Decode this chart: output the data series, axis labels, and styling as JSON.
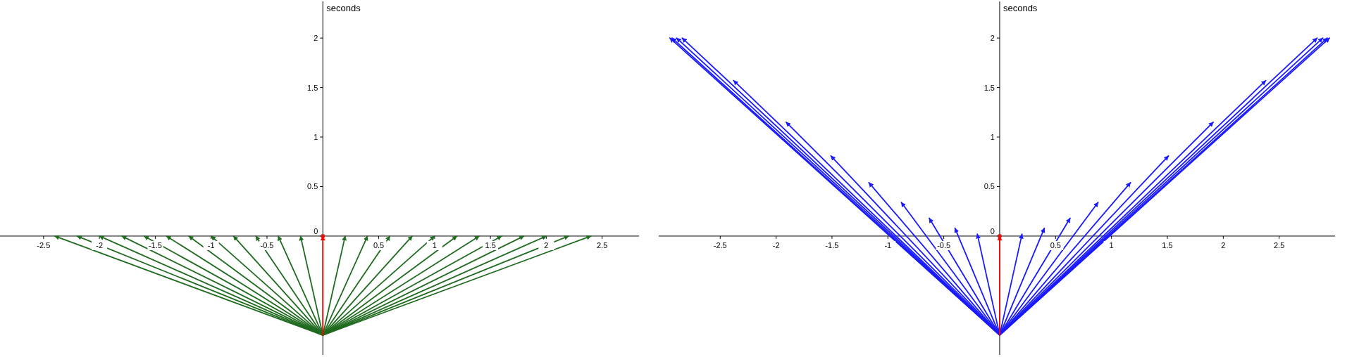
{
  "chart_data": [
    {
      "type": "line",
      "ylabel": "seconds",
      "xlim": [
        -2.89,
        2.83
      ],
      "ylim": [
        -1.2,
        2.37
      ],
      "xticks": [
        -2.5,
        -2,
        -1.5,
        -1,
        -0.5,
        0.5,
        1,
        1.5,
        2,
        2.5
      ],
      "yticks": [
        0,
        0.5,
        1,
        1.5,
        2
      ],
      "series": [
        {
          "color": "#1f6b1f",
          "x": [
            0,
            -2.4
          ],
          "values": [
            -1,
            0
          ]
        },
        {
          "color": "#1f6b1f",
          "x": [
            0,
            -2.2
          ],
          "values": [
            -1,
            0
          ]
        },
        {
          "color": "#1f6b1f",
          "x": [
            0,
            -2.0
          ],
          "values": [
            -1,
            0
          ]
        },
        {
          "color": "#1f6b1f",
          "x": [
            0,
            -1.8
          ],
          "values": [
            -1,
            0
          ]
        },
        {
          "color": "#1f6b1f",
          "x": [
            0,
            -1.6
          ],
          "values": [
            -1,
            0
          ]
        },
        {
          "color": "#1f6b1f",
          "x": [
            0,
            -1.4
          ],
          "values": [
            -1,
            0
          ]
        },
        {
          "color": "#1f6b1f",
          "x": [
            0,
            -1.2
          ],
          "values": [
            -1,
            0
          ]
        },
        {
          "color": "#1f6b1f",
          "x": [
            0,
            -1.0
          ],
          "values": [
            -1,
            0
          ]
        },
        {
          "color": "#1f6b1f",
          "x": [
            0,
            -0.8
          ],
          "values": [
            -1,
            0
          ]
        },
        {
          "color": "#1f6b1f",
          "x": [
            0,
            -0.6
          ],
          "values": [
            -1,
            0
          ]
        },
        {
          "color": "#1f6b1f",
          "x": [
            0,
            -0.4
          ],
          "values": [
            -1,
            0
          ]
        },
        {
          "color": "#1f6b1f",
          "x": [
            0,
            -0.2
          ],
          "values": [
            -1,
            0
          ]
        },
        {
          "color": "#1f6b1f",
          "x": [
            0,
            0.2
          ],
          "values": [
            -1,
            0
          ]
        },
        {
          "color": "#1f6b1f",
          "x": [
            0,
            0.4
          ],
          "values": [
            -1,
            0
          ]
        },
        {
          "color": "#1f6b1f",
          "x": [
            0,
            0.6
          ],
          "values": [
            -1,
            0
          ]
        },
        {
          "color": "#1f6b1f",
          "x": [
            0,
            0.8
          ],
          "values": [
            -1,
            0
          ]
        },
        {
          "color": "#1f6b1f",
          "x": [
            0,
            1.0
          ],
          "values": [
            -1,
            0
          ]
        },
        {
          "color": "#1f6b1f",
          "x": [
            0,
            1.2
          ],
          "values": [
            -1,
            0
          ]
        },
        {
          "color": "#1f6b1f",
          "x": [
            0,
            1.4
          ],
          "values": [
            -1,
            0
          ]
        },
        {
          "color": "#1f6b1f",
          "x": [
            0,
            1.6
          ],
          "values": [
            -1,
            0
          ]
        },
        {
          "color": "#1f6b1f",
          "x": [
            0,
            1.8
          ],
          "values": [
            -1,
            0
          ]
        },
        {
          "color": "#1f6b1f",
          "x": [
            0,
            2.0
          ],
          "values": [
            -1,
            0
          ]
        },
        {
          "color": "#1f6b1f",
          "x": [
            0,
            2.2
          ],
          "values": [
            -1,
            0
          ]
        },
        {
          "color": "#1f6b1f",
          "x": [
            0,
            2.4
          ],
          "values": [
            -1,
            0
          ]
        },
        {
          "type": "scatter",
          "color": "#cc2222",
          "x": [
            0
          ],
          "values": [
            0
          ]
        },
        {
          "color": "#ff0000",
          "x": [
            0,
            0
          ],
          "values": [
            -1,
            0
          ]
        }
      ]
    },
    {
      "type": "line",
      "ylabel": "seconds",
      "xlim": [
        -3.05,
        3.0
      ],
      "ylim": [
        -1.2,
        2.37
      ],
      "xticks": [
        -2.5,
        -2,
        -1.5,
        -1,
        -0.5,
        0.5,
        1,
        1.5,
        2,
        2.5
      ],
      "yticks": [
        0,
        0.5,
        1,
        1.5,
        2
      ],
      "series": [
        {
          "color": "#1a1aff",
          "x": [
            0,
            -2.95
          ],
          "values": [
            -1,
            2
          ]
        },
        {
          "color": "#1a1aff",
          "x": [
            0,
            -2.93
          ],
          "values": [
            -1,
            2
          ]
        },
        {
          "color": "#1a1aff",
          "x": [
            0,
            -2.89
          ],
          "values": [
            -1,
            2
          ]
        },
        {
          "color": "#1a1aff",
          "x": [
            0,
            -2.84
          ],
          "values": [
            -1,
            2
          ]
        },
        {
          "color": "#1a1aff",
          "x": [
            0,
            -2.38
          ],
          "values": [
            -1,
            1.57
          ]
        },
        {
          "color": "#1a1aff",
          "x": [
            0,
            -1.91
          ],
          "values": [
            -1,
            1.15
          ]
        },
        {
          "color": "#1a1aff",
          "x": [
            0,
            -1.51
          ],
          "values": [
            -1,
            0.81
          ]
        },
        {
          "color": "#1a1aff",
          "x": [
            0,
            -1.17
          ],
          "values": [
            -1,
            0.54
          ]
        },
        {
          "color": "#1a1aff",
          "x": [
            0,
            -0.88
          ],
          "values": [
            -1,
            0.34
          ]
        },
        {
          "color": "#1a1aff",
          "x": [
            0,
            -0.63
          ],
          "values": [
            -1,
            0.18
          ]
        },
        {
          "color": "#1a1aff",
          "x": [
            0,
            -0.4
          ],
          "values": [
            -1,
            0.08
          ]
        },
        {
          "color": "#1a1aff",
          "x": [
            0,
            -0.2
          ],
          "values": [
            -1,
            0.02
          ]
        },
        {
          "color": "#1a1aff",
          "x": [
            0,
            0.2
          ],
          "values": [
            -1,
            0.02
          ]
        },
        {
          "color": "#1a1aff",
          "x": [
            0,
            0.4
          ],
          "values": [
            -1,
            0.08
          ]
        },
        {
          "color": "#1a1aff",
          "x": [
            0,
            0.63
          ],
          "values": [
            -1,
            0.18
          ]
        },
        {
          "color": "#1a1aff",
          "x": [
            0,
            0.88
          ],
          "values": [
            -1,
            0.34
          ]
        },
        {
          "color": "#1a1aff",
          "x": [
            0,
            1.17
          ],
          "values": [
            -1,
            0.54
          ]
        },
        {
          "color": "#1a1aff",
          "x": [
            0,
            1.51
          ],
          "values": [
            -1,
            0.81
          ]
        },
        {
          "color": "#1a1aff",
          "x": [
            0,
            1.91
          ],
          "values": [
            -1,
            1.15
          ]
        },
        {
          "color": "#1a1aff",
          "x": [
            0,
            2.38
          ],
          "values": [
            -1,
            1.57
          ]
        },
        {
          "color": "#1a1aff",
          "x": [
            0,
            2.84
          ],
          "values": [
            -1,
            2
          ]
        },
        {
          "color": "#1a1aff",
          "x": [
            0,
            2.89
          ],
          "values": [
            -1,
            2
          ]
        },
        {
          "color": "#1a1aff",
          "x": [
            0,
            2.93
          ],
          "values": [
            -1,
            2
          ]
        },
        {
          "color": "#1a1aff",
          "x": [
            0,
            2.95
          ],
          "values": [
            -1,
            2
          ]
        },
        {
          "type": "scatter",
          "color": "#cc2222",
          "x": [
            0
          ],
          "values": [
            0
          ]
        },
        {
          "color": "#ff0000",
          "x": [
            0,
            0
          ],
          "values": [
            -1,
            0
          ]
        }
      ]
    }
  ]
}
